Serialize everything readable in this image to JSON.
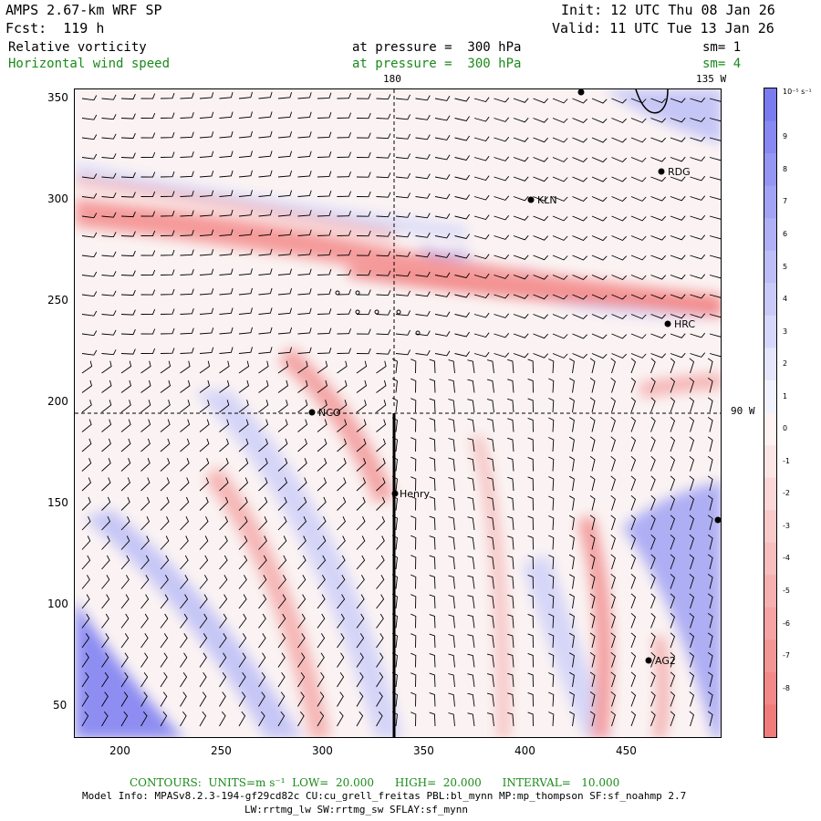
{
  "header": {
    "model": "AMPS 2.67-km WRF SP",
    "init": "Init: 12 UTC Thu 08 Jan 26",
    "forecast": "Fcst:  119 h",
    "valid": "Valid: 11 UTC Tue 13 Jan 26"
  },
  "fields": [
    {
      "name": "Relative vorticity",
      "pressure": "at pressure =  300 hPa",
      "smoothing": "sm= 1",
      "color": "#000000"
    },
    {
      "name": "Horizontal wind speed",
      "pressure": "at pressure =  300 hPa",
      "smoothing": "sm= 4",
      "color": "#1a8a1a"
    }
  ],
  "axes": {
    "x_ticks": [
      "200",
      "250",
      "300",
      "350",
      "400",
      "450"
    ],
    "y_ticks": [
      "350",
      "300",
      "250",
      "200",
      "150",
      "100",
      "50"
    ],
    "meridian_top": "180",
    "meridian_right": "135 W",
    "lat_right": "90 W"
  },
  "colorbar": {
    "unit": "10⁻⁵ s⁻¹",
    "labels": [
      "9",
      "8",
      "7",
      "6",
      "5",
      "4",
      "3",
      "2",
      "1",
      "0",
      "-1",
      "-2",
      "-3",
      "-4",
      "-5",
      "-6",
      "-7",
      "-8"
    ],
    "positive_color": "#7b7bf0",
    "negative_color": "#f07b7b"
  },
  "stations": [
    {
      "label": "RDG"
    },
    {
      "label": "KLN"
    },
    {
      "label": "HRC"
    },
    {
      "label": "NCO"
    },
    {
      "label": "Henry"
    },
    {
      "label": "AG2"
    }
  ],
  "footer": {
    "contours": "CONTOURS:  UNITS=m s⁻¹  LOW=  20.000      HIGH=  20.000      INTERVAL=   10.000",
    "model_info": "Model Info: MPASv8.2.3-194-gf29cd82c CU:cu_grell_freitas PBL:bl_mynn MP:mp_thompson SF:sf_noahmp 2.7",
    "model_info2": "LW:rrtmg_lw SW:rrtmg_sw SFLAY:sf_mynn"
  }
}
